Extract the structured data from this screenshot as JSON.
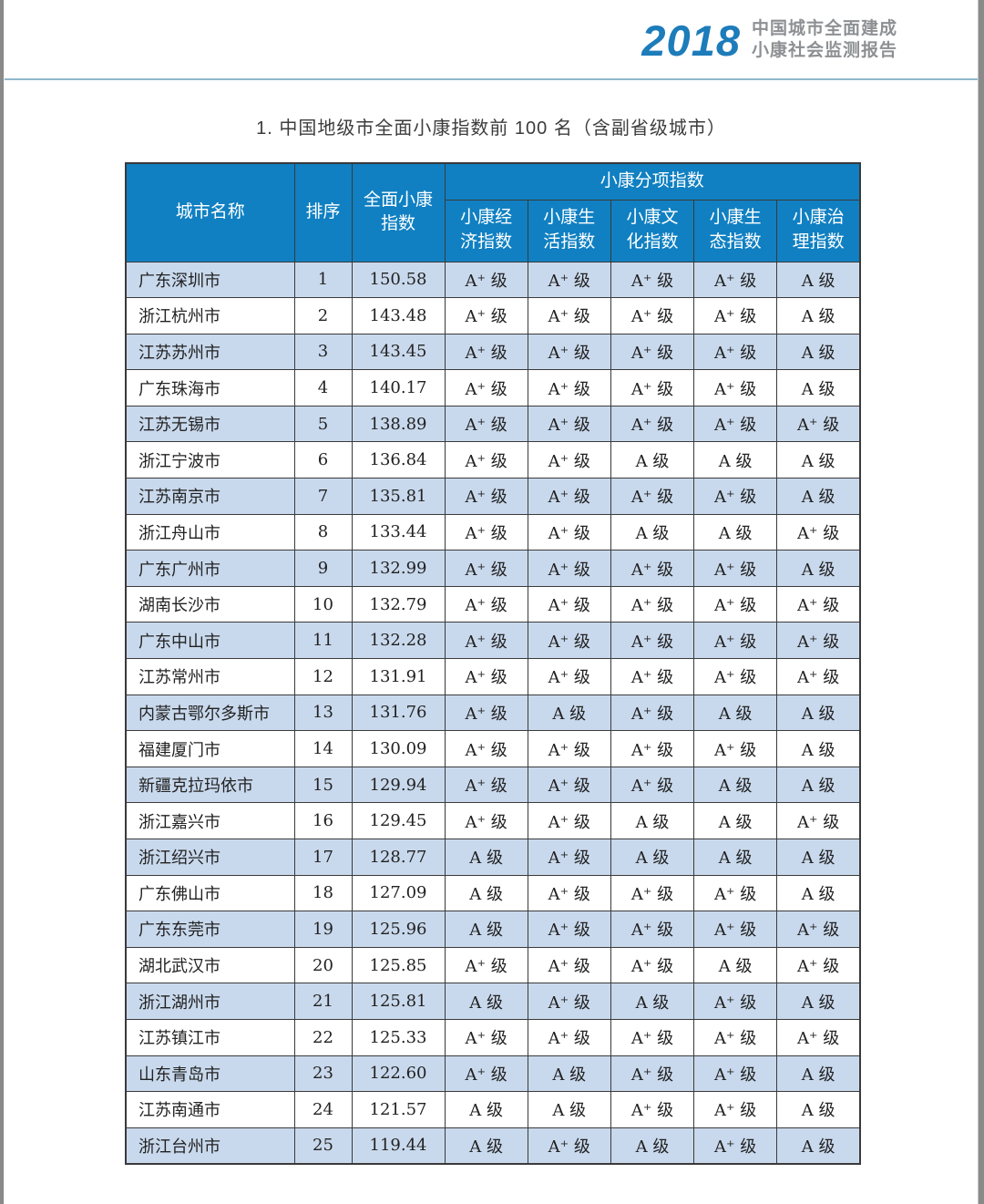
{
  "page_header": {
    "year": "2018",
    "report_title_line1": "中国城市全面建成",
    "report_title_line2": "小康社会监测报告"
  },
  "table_title": "1. 中国地级市全面小康指数前 100 名（含副省级城市）",
  "colors": {
    "header_blue": "#1080c2",
    "shaded_row_blue": "#c9d9ed",
    "logo_blue": "#1d7cba",
    "logo_gray": "#8d9093",
    "banner_rule_blue": "#8fb8cc",
    "border_dark": "#3a3a3a"
  },
  "table": {
    "headers": {
      "city": "城市名称",
      "rank": "排序",
      "overall": "全面小康\n指数",
      "group": "小康分项指数",
      "sub": [
        "小康经\n济指数",
        "小康生\n活指数",
        "小康文\n化指数",
        "小康生\n态指数",
        "小康治\n理指数"
      ]
    },
    "rows": [
      {
        "city": "广东深圳市",
        "rank": "1",
        "overall": "150.58",
        "economy": "A⁺ 级",
        "life": "A⁺ 级",
        "culture": "A⁺ 级",
        "ecology": "A⁺ 级",
        "governance": "A 级"
      },
      {
        "city": "浙江杭州市",
        "rank": "2",
        "overall": "143.48",
        "economy": "A⁺ 级",
        "life": "A⁺ 级",
        "culture": "A⁺ 级",
        "ecology": "A⁺ 级",
        "governance": "A 级"
      },
      {
        "city": "江苏苏州市",
        "rank": "3",
        "overall": "143.45",
        "economy": "A⁺ 级",
        "life": "A⁺ 级",
        "culture": "A⁺ 级",
        "ecology": "A⁺ 级",
        "governance": "A 级"
      },
      {
        "city": "广东珠海市",
        "rank": "4",
        "overall": "140.17",
        "economy": "A⁺ 级",
        "life": "A⁺ 级",
        "culture": "A⁺ 级",
        "ecology": "A⁺ 级",
        "governance": "A 级"
      },
      {
        "city": "江苏无锡市",
        "rank": "5",
        "overall": "138.89",
        "economy": "A⁺ 级",
        "life": "A⁺ 级",
        "culture": "A⁺ 级",
        "ecology": "A⁺ 级",
        "governance": "A⁺ 级"
      },
      {
        "city": "浙江宁波市",
        "rank": "6",
        "overall": "136.84",
        "economy": "A⁺ 级",
        "life": "A⁺ 级",
        "culture": "A 级",
        "ecology": "A 级",
        "governance": "A 级"
      },
      {
        "city": "江苏南京市",
        "rank": "7",
        "overall": "135.81",
        "economy": "A⁺ 级",
        "life": "A⁺ 级",
        "culture": "A⁺ 级",
        "ecology": "A⁺ 级",
        "governance": "A 级"
      },
      {
        "city": "浙江舟山市",
        "rank": "8",
        "overall": "133.44",
        "economy": "A⁺ 级",
        "life": "A⁺ 级",
        "culture": "A 级",
        "ecology": "A 级",
        "governance": "A⁺ 级"
      },
      {
        "city": "广东广州市",
        "rank": "9",
        "overall": "132.99",
        "economy": "A⁺ 级",
        "life": "A⁺ 级",
        "culture": "A⁺ 级",
        "ecology": "A⁺ 级",
        "governance": "A 级"
      },
      {
        "city": "湖南长沙市",
        "rank": "10",
        "overall": "132.79",
        "economy": "A⁺ 级",
        "life": "A⁺ 级",
        "culture": "A⁺ 级",
        "ecology": "A⁺ 级",
        "governance": "A⁺ 级"
      },
      {
        "city": "广东中山市",
        "rank": "11",
        "overall": "132.28",
        "economy": "A⁺ 级",
        "life": "A⁺ 级",
        "culture": "A⁺ 级",
        "ecology": "A⁺ 级",
        "governance": "A⁺ 级"
      },
      {
        "city": "江苏常州市",
        "rank": "12",
        "overall": "131.91",
        "economy": "A⁺ 级",
        "life": "A⁺ 级",
        "culture": "A⁺ 级",
        "ecology": "A⁺ 级",
        "governance": "A⁺ 级"
      },
      {
        "city": "内蒙古鄂尔多斯市",
        "rank": "13",
        "overall": "131.76",
        "economy": "A⁺ 级",
        "life": "A 级",
        "culture": "A⁺ 级",
        "ecology": "A 级",
        "governance": "A 级"
      },
      {
        "city": "福建厦门市",
        "rank": "14",
        "overall": "130.09",
        "economy": "A⁺ 级",
        "life": "A⁺ 级",
        "culture": "A⁺ 级",
        "ecology": "A⁺ 级",
        "governance": "A 级"
      },
      {
        "city": "新疆克拉玛依市",
        "rank": "15",
        "overall": "129.94",
        "economy": "A⁺ 级",
        "life": "A⁺ 级",
        "culture": "A⁺ 级",
        "ecology": "A 级",
        "governance": "A 级"
      },
      {
        "city": "浙江嘉兴市",
        "rank": "16",
        "overall": "129.45",
        "economy": "A⁺ 级",
        "life": "A⁺ 级",
        "culture": "A 级",
        "ecology": "A 级",
        "governance": "A⁺ 级"
      },
      {
        "city": "浙江绍兴市",
        "rank": "17",
        "overall": "128.77",
        "economy": "A 级",
        "life": "A⁺ 级",
        "culture": "A 级",
        "ecology": "A 级",
        "governance": "A 级"
      },
      {
        "city": "广东佛山市",
        "rank": "18",
        "overall": "127.09",
        "economy": "A 级",
        "life": "A⁺ 级",
        "culture": "A⁺ 级",
        "ecology": "A⁺ 级",
        "governance": "A 级"
      },
      {
        "city": "广东东莞市",
        "rank": "19",
        "overall": "125.96",
        "economy": "A 级",
        "life": "A⁺ 级",
        "culture": "A⁺ 级",
        "ecology": "A⁺ 级",
        "governance": "A⁺ 级"
      },
      {
        "city": "湖北武汉市",
        "rank": "20",
        "overall": "125.85",
        "economy": "A⁺ 级",
        "life": "A⁺ 级",
        "culture": "A⁺ 级",
        "ecology": "A 级",
        "governance": "A⁺ 级"
      },
      {
        "city": "浙江湖州市",
        "rank": "21",
        "overall": "125.81",
        "economy": "A 级",
        "life": "A⁺ 级",
        "culture": "A 级",
        "ecology": "A⁺ 级",
        "governance": "A 级"
      },
      {
        "city": "江苏镇江市",
        "rank": "22",
        "overall": "125.33",
        "economy": "A⁺ 级",
        "life": "A⁺ 级",
        "culture": "A⁺ 级",
        "ecology": "A⁺ 级",
        "governance": "A⁺ 级"
      },
      {
        "city": "山东青岛市",
        "rank": "23",
        "overall": "122.60",
        "economy": "A⁺ 级",
        "life": "A 级",
        "culture": "A⁺ 级",
        "ecology": "A⁺ 级",
        "governance": "A 级"
      },
      {
        "city": "江苏南通市",
        "rank": "24",
        "overall": "121.57",
        "economy": "A 级",
        "life": "A 级",
        "culture": "A⁺ 级",
        "ecology": "A⁺ 级",
        "governance": "A 级"
      },
      {
        "city": "浙江台州市",
        "rank": "25",
        "overall": "119.44",
        "economy": "A 级",
        "life": "A⁺ 级",
        "culture": "A 级",
        "ecology": "A⁺ 级",
        "governance": "A 级"
      }
    ]
  }
}
